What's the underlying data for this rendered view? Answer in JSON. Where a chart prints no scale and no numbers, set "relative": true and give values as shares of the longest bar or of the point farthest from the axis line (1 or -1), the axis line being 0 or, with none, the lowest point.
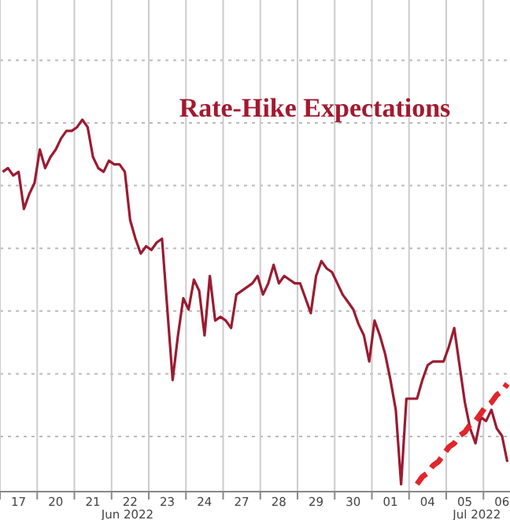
{
  "chart_data": {
    "type": "line",
    "title": "Rate-Hike Expectations",
    "relative": true,
    "grid": true,
    "categories": [
      null,
      null,
      null,
      "17",
      null,
      null,
      null,
      null,
      null,
      null,
      "20",
      null,
      null,
      null,
      null,
      null,
      null,
      "21",
      null,
      null,
      null,
      null,
      null,
      null,
      "22",
      null,
      null,
      null,
      null,
      null,
      null,
      "23",
      null,
      null,
      null,
      null,
      null,
      null,
      "24",
      null,
      null,
      null,
      null,
      null,
      null,
      "27",
      null,
      null,
      null,
      null,
      null,
      null,
      "28",
      null,
      null,
      null,
      null,
      null,
      null,
      "29",
      null,
      null,
      null,
      null,
      null,
      null,
      "30",
      null,
      null,
      null,
      null,
      null,
      null,
      "01",
      null,
      null,
      null,
      null,
      null,
      null,
      "04",
      null,
      null,
      null,
      null,
      null,
      null,
      "05",
      null,
      null,
      null,
      null,
      null,
      null,
      "06",
      null
    ],
    "annotations": [
      "Jun 2022",
      "Jul 2022"
    ],
    "series": [
      {
        "color": "#9b1b30",
        "line_style": "solid",
        "values": [
          0.86,
          0.87,
          0.85,
          0.86,
          0.76,
          0.8,
          0.83,
          0.92,
          0.87,
          0.9,
          0.92,
          0.95,
          0.97,
          0.97,
          0.98,
          1.0,
          0.98,
          0.9,
          0.87,
          0.86,
          0.89,
          0.88,
          0.88,
          0.86,
          0.73,
          0.68,
          0.64,
          0.66,
          0.65,
          0.67,
          0.68,
          0.49,
          0.3,
          0.42,
          0.52,
          0.49,
          0.57,
          0.54,
          0.42,
          0.58,
          0.46,
          0.47,
          0.46,
          0.44,
          0.53,
          0.54,
          0.55,
          0.56,
          0.58,
          0.53,
          0.56,
          0.61,
          0.56,
          0.58,
          0.57,
          0.56,
          0.56,
          0.52,
          0.48,
          0.58,
          0.62,
          0.6,
          0.59,
          0.56,
          0.53,
          0.51,
          0.49,
          0.45,
          0.42,
          0.35,
          0.46,
          0.42,
          0.37,
          0.3,
          0.22,
          0.02,
          0.25,
          0.25,
          0.25,
          0.3,
          0.34,
          0.35,
          0.35,
          0.35,
          0.39,
          0.44,
          0.34,
          0.24,
          0.17,
          0.13,
          0.2,
          0.19,
          0.22,
          0.17,
          0.15,
          0.08
        ]
      },
      {
        "type": "line",
        "color": "#e0262b",
        "line_style": "dashed",
        "values": [
          null,
          null,
          null,
          null,
          null,
          null,
          null,
          null,
          null,
          null,
          null,
          null,
          null,
          null,
          null,
          null,
          null,
          null,
          null,
          null,
          null,
          null,
          null,
          null,
          null,
          null,
          null,
          null,
          null,
          null,
          null,
          null,
          null,
          null,
          null,
          null,
          null,
          null,
          null,
          null,
          null,
          null,
          null,
          null,
          null,
          null,
          null,
          null,
          null,
          null,
          null,
          null,
          null,
          null,
          null,
          null,
          null,
          null,
          null,
          null,
          null,
          null,
          null,
          null,
          null,
          null,
          null,
          null,
          null,
          null,
          null,
          null,
          null,
          null,
          null,
          null,
          null,
          null,
          0.02,
          0.04,
          0.05,
          0.07,
          0.08,
          0.1,
          0.12,
          0.13,
          0.15,
          0.16,
          0.18,
          0.19,
          0.21,
          0.23,
          0.24,
          0.26,
          0.27,
          0.29
        ]
      }
    ]
  }
}
